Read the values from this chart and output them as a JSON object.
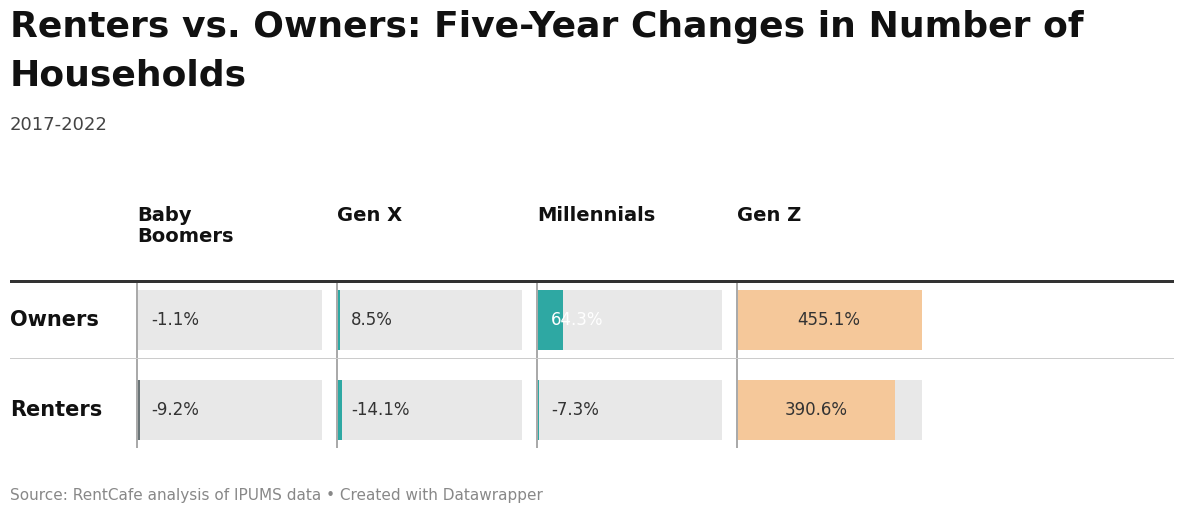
{
  "title_line1": "Renters vs. Owners: Five-Year Changes in Number of",
  "title_line2": "Households",
  "subtitle": "2017-2022",
  "source": "Source: RentCafe analysis of IPUMS data • Created with Datawrapper",
  "columns": [
    "Baby\nBoomers",
    "Gen X",
    "Millennials",
    "Gen Z"
  ],
  "rows": [
    "Owners",
    "Renters"
  ],
  "values": [
    [
      -1.1,
      8.5,
      64.3,
      455.1
    ],
    [
      -9.2,
      -14.1,
      -7.3,
      390.6
    ]
  ],
  "labels": [
    [
      "-1.1%",
      "8.5%",
      "64.3%",
      "455.1%"
    ],
    [
      "-9.2%",
      "-14.1%",
      "-7.3%",
      "390.6%"
    ]
  ],
  "bar_colors": [
    [
      "#9da8aa",
      "#2ea8a3",
      "#2ea8a3",
      "#f5c89a"
    ],
    [
      "#6b7577",
      "#2ea8a3",
      "#2ea8a3",
      "#f5c89a"
    ]
  ],
  "label_colors": [
    [
      "#333333",
      "#333333",
      "#ffffff",
      "#333333"
    ],
    [
      "#333333",
      "#333333",
      "#333333",
      "#333333"
    ]
  ],
  "bg_color": "#ffffff",
  "cell_bg": "#e8e8e8",
  "max_val": 455.1,
  "title_fontsize": 26,
  "subtitle_fontsize": 13,
  "col_header_fontsize": 14,
  "row_label_fontsize": 15,
  "bar_label_fontsize": 12,
  "source_fontsize": 11
}
